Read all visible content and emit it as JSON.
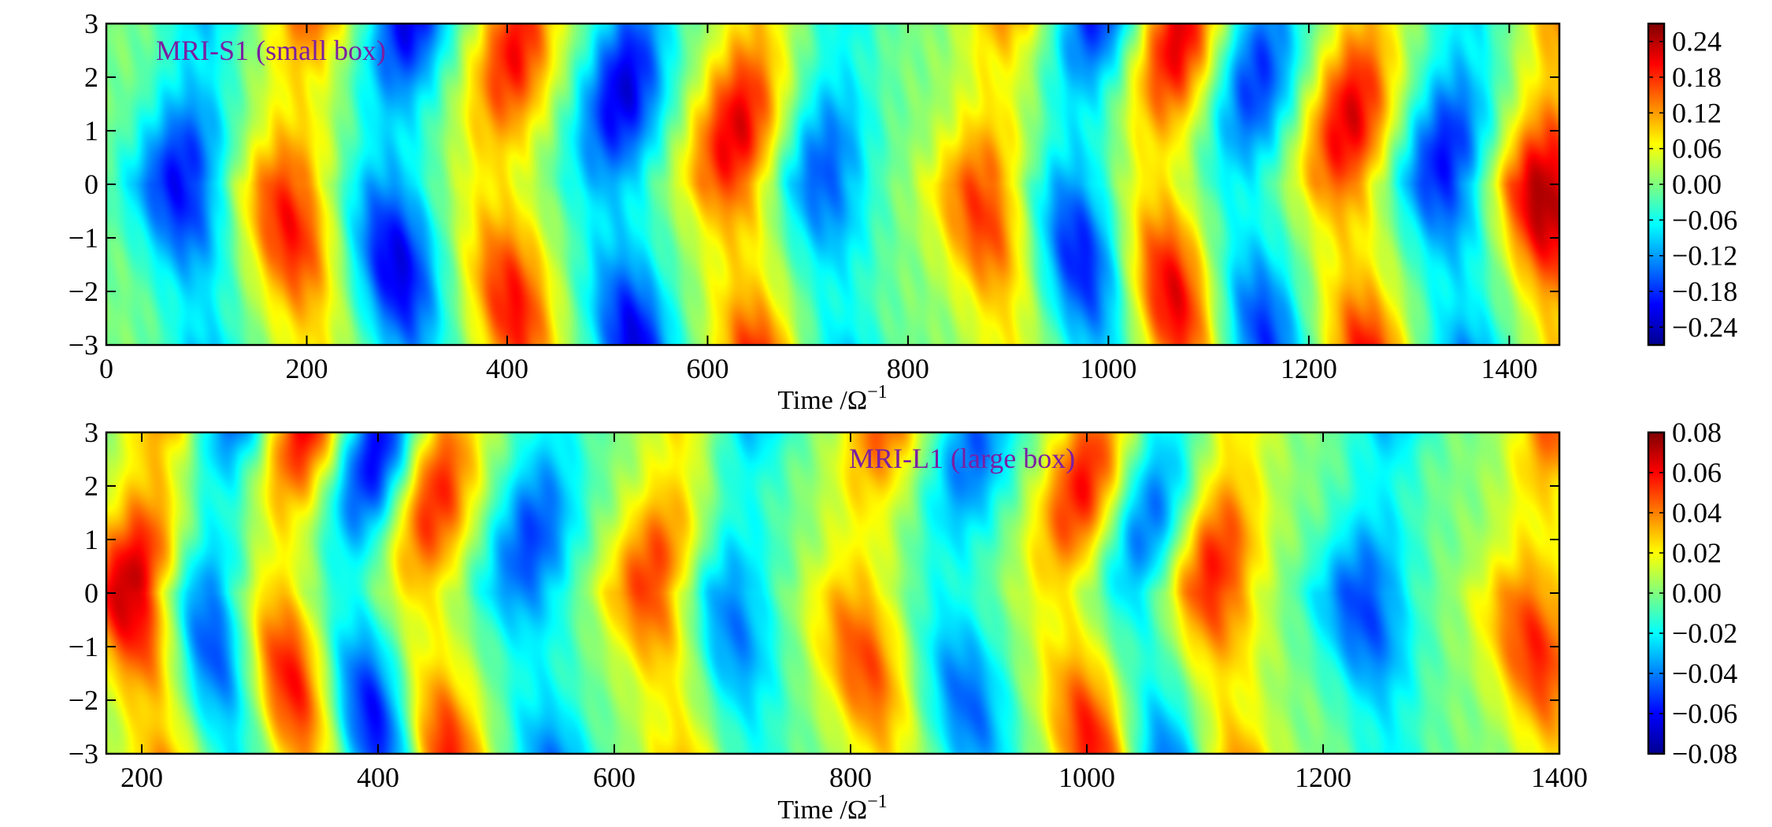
{
  "chart_data": [
    {
      "type": "heatmap",
      "title": "",
      "annotation": "MRI-S1 (small box)",
      "xlabel": "Time /Ω",
      "xlabel_sup": "−1",
      "ylabel": "",
      "xlim": [
        0,
        1450
      ],
      "ylim": [
        -3,
        3
      ],
      "xticks": [
        "0",
        "200",
        "400",
        "600",
        "800",
        "1000",
        "1200",
        "1400"
      ],
      "yticks": [
        "−3",
        "−2",
        "−1",
        "0",
        "1",
        "2",
        "3"
      ],
      "colormap": "jet",
      "colorbar": {
        "range": [
          -0.27,
          0.27
        ],
        "ticks": [
          "0.24",
          "0.18",
          "0.12",
          "0.06",
          "0.00",
          "−0.06",
          "−0.12",
          "−0.18",
          "−0.24"
        ],
        "tick_values": [
          0.24,
          0.18,
          0.12,
          0.06,
          0.0,
          -0.06,
          -0.12,
          -0.18,
          -0.24
        ]
      },
      "features": [
        {
          "t": 70,
          "sign": -1,
          "amp": 0.2
        },
        {
          "t": 175,
          "sign": 1,
          "amp": 0.2
        },
        {
          "t": 275,
          "sign": -1,
          "amp": 0.22
        },
        {
          "t": 385,
          "sign": 1,
          "amp": 0.2
        },
        {
          "t": 500,
          "sign": -1,
          "amp": 0.22
        },
        {
          "t": 620,
          "sign": 1,
          "amp": 0.22
        },
        {
          "t": 710,
          "sign": -1,
          "amp": 0.16
        },
        {
          "t": 870,
          "sign": 1,
          "amp": 0.18
        },
        {
          "t": 960,
          "sign": -1,
          "amp": 0.2
        },
        {
          "t": 1045,
          "sign": 1,
          "amp": 0.22
        },
        {
          "t": 1130,
          "sign": -1,
          "amp": 0.18
        },
        {
          "t": 1230,
          "sign": 1,
          "amp": 0.22
        },
        {
          "t": 1330,
          "sign": -1,
          "amp": 0.2
        },
        {
          "t": 1430,
          "sign": 1,
          "amp": 0.25
        }
      ]
    },
    {
      "type": "heatmap",
      "title": "",
      "annotation": "MRI-L1 (large box)",
      "xlabel": "Time /Ω",
      "xlabel_sup": "−1",
      "ylabel": "",
      "xlim": [
        170,
        1400
      ],
      "ylim": [
        -3,
        3
      ],
      "xticks": [
        "200",
        "400",
        "600",
        "800",
        "1000",
        "1200",
        "1400"
      ],
      "yticks": [
        "−3",
        "−2",
        "−1",
        "0",
        "1",
        "2",
        "3"
      ],
      "colormap": "jet",
      "colorbar": {
        "range": [
          -0.08,
          0.08
        ],
        "ticks": [
          "0.08",
          "0.06",
          "0.04",
          "0.02",
          "0.00",
          "−0.02",
          "−0.04",
          "−0.06",
          "−0.08"
        ],
        "tick_values": [
          0.08,
          0.06,
          0.04,
          0.02,
          0.0,
          -0.02,
          -0.04,
          -0.06,
          -0.08
        ]
      },
      "features": [
        {
          "t": 190,
          "sign": 1,
          "amp": 0.075
        },
        {
          "t": 250,
          "sign": -1,
          "amp": 0.06
        },
        {
          "t": 310,
          "sign": 1,
          "amp": 0.065
        },
        {
          "t": 375,
          "sign": -1,
          "amp": 0.065
        },
        {
          "t": 430,
          "sign": 1,
          "amp": 0.06
        },
        {
          "t": 520,
          "sign": -1,
          "amp": 0.05
        },
        {
          "t": 630,
          "sign": 1,
          "amp": 0.055
        },
        {
          "t": 690,
          "sign": -1,
          "amp": 0.045
        },
        {
          "t": 800,
          "sign": 1,
          "amp": 0.05
        },
        {
          "t": 880,
          "sign": -1,
          "amp": 0.045
        },
        {
          "t": 980,
          "sign": 1,
          "amp": 0.06
        },
        {
          "t": 1040,
          "sign": -1,
          "amp": 0.05
        },
        {
          "t": 1100,
          "sign": 1,
          "amp": 0.06
        },
        {
          "t": 1230,
          "sign": -1,
          "amp": 0.05
        },
        {
          "t": 1370,
          "sign": 1,
          "amp": 0.055
        }
      ]
    }
  ]
}
